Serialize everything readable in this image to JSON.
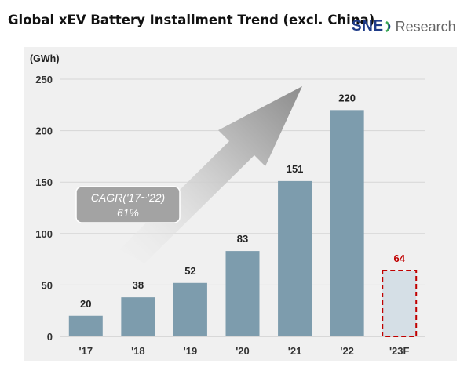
{
  "header": {
    "title": "Global xEV Battery Installment Trend (excl. China)",
    "logo_sne": "SNE",
    "logo_research": "Research"
  },
  "annotation": {
    "cagr_line1": "CAGR('17~'22)",
    "cagr_line2": "61%"
  },
  "colors": {
    "bar": "#7d9cad",
    "forecast_fill": "#d5dfe6",
    "forecast_border": "#c00000",
    "forecast_label": "#c00000",
    "panel_bg": "#f0f0f0"
  },
  "chart_data": {
    "type": "bar",
    "title": "Global xEV Battery Installment Trend (excl. China)",
    "ylabel": "(GWh)",
    "xlabel": "",
    "categories": [
      "'17",
      "'18",
      "'19",
      "'20",
      "'21",
      "'22",
      "'23F"
    ],
    "values": [
      20,
      38,
      52,
      83,
      151,
      220,
      64
    ],
    "data_labels": [
      "20",
      "38",
      "52",
      "83",
      "151",
      "220",
      "64"
    ],
    "forecast": [
      false,
      false,
      false,
      false,
      false,
      false,
      true
    ],
    "ylim": [
      0,
      250
    ],
    "yticks": [
      0,
      50,
      100,
      150,
      200,
      250
    ],
    "grid": true,
    "legend": "none"
  }
}
